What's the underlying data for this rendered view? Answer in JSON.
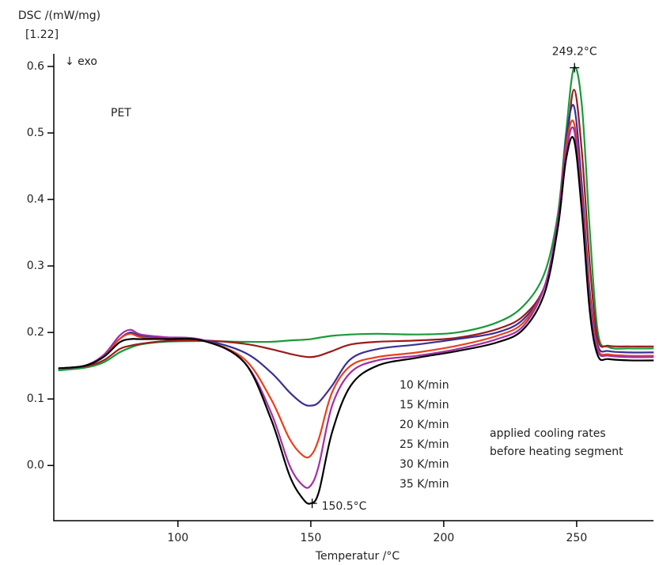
{
  "chart_data": {
    "type": "line",
    "y_label": "DSC /(mW/mg)",
    "y_label_sub": "[1.22]",
    "x_label": "Temperatur /°C",
    "exo_label": "↓ exo",
    "sample_label": "PET",
    "notes": [
      "applied cooling rates",
      "before heating segment"
    ],
    "xlim": [
      53.3,
      278.9
    ],
    "ylim": [
      -0.083,
      0.619
    ],
    "xticks": [
      100,
      150,
      200,
      250
    ],
    "yticks": [
      {
        "value": 0,
        "label": "0.0"
      },
      0.1,
      0.2,
      0.3,
      0.4,
      0.5,
      0.6
    ],
    "x": [
      55,
      65,
      72,
      78,
      82,
      86,
      95,
      110,
      125,
      135,
      142,
      147,
      150,
      153,
      158,
      165,
      175,
      190,
      205,
      220,
      230,
      238,
      243,
      246,
      249,
      252,
      255,
      258,
      262,
      270,
      279
    ],
    "series": [
      {
        "name": "10 K/min",
        "color": "#1a9a3a",
        "values": [
          0.143,
          0.147,
          0.155,
          0.17,
          0.177,
          0.182,
          0.186,
          0.187,
          0.186,
          0.186,
          0.188,
          0.189,
          0.19,
          0.192,
          0.195,
          0.197,
          0.198,
          0.197,
          0.2,
          0.215,
          0.24,
          0.29,
          0.38,
          0.5,
          0.598,
          0.54,
          0.35,
          0.2,
          0.178,
          0.176,
          0.176
        ]
      },
      {
        "name": "15 K/min",
        "color": "#9b1b1b",
        "values": [
          0.146,
          0.149,
          0.158,
          0.175,
          0.18,
          0.183,
          0.187,
          0.188,
          0.183,
          0.175,
          0.168,
          0.164,
          0.163,
          0.165,
          0.172,
          0.182,
          0.186,
          0.188,
          0.192,
          0.205,
          0.225,
          0.27,
          0.36,
          0.47,
          0.565,
          0.47,
          0.3,
          0.19,
          0.18,
          0.179,
          0.179
        ]
      },
      {
        "name": "20 K/min",
        "color": "#3b2f95",
        "values": [
          0.146,
          0.15,
          0.165,
          0.19,
          0.2,
          0.195,
          0.192,
          0.188,
          0.17,
          0.14,
          0.11,
          0.093,
          0.09,
          0.095,
          0.12,
          0.16,
          0.175,
          0.182,
          0.19,
          0.2,
          0.22,
          0.27,
          0.37,
          0.49,
          0.54,
          0.42,
          0.26,
          0.18,
          0.172,
          0.17,
          0.17
        ]
      },
      {
        "name": "25 K/min",
        "color": "#e8401c",
        "values": [
          0.146,
          0.15,
          0.165,
          0.19,
          0.198,
          0.193,
          0.19,
          0.187,
          0.16,
          0.1,
          0.04,
          0.015,
          0.015,
          0.04,
          0.11,
          0.15,
          0.163,
          0.17,
          0.18,
          0.195,
          0.215,
          0.27,
          0.37,
          0.48,
          0.515,
          0.4,
          0.25,
          0.175,
          0.167,
          0.165,
          0.165
        ]
      },
      {
        "name": "30 K/min",
        "color": "#a52ea5",
        "values": [
          0.146,
          0.15,
          0.166,
          0.195,
          0.204,
          0.197,
          0.193,
          0.188,
          0.155,
          0.08,
          0.0,
          -0.03,
          -0.03,
          0.0,
          0.09,
          0.14,
          0.158,
          0.165,
          0.175,
          0.19,
          0.21,
          0.27,
          0.37,
          0.47,
          0.505,
          0.39,
          0.24,
          0.172,
          0.165,
          0.163,
          0.163
        ]
      },
      {
        "name": "35 K/min",
        "color": "#000000",
        "values": [
          0.146,
          0.15,
          0.163,
          0.185,
          0.19,
          0.19,
          0.19,
          0.187,
          0.155,
          0.07,
          -0.015,
          -0.05,
          -0.057,
          -0.04,
          0.05,
          0.12,
          0.15,
          0.162,
          0.172,
          0.185,
          0.205,
          0.26,
          0.36,
          0.46,
          0.49,
          0.38,
          0.23,
          0.165,
          0.16,
          0.158,
          0.158
        ]
      }
    ],
    "annotations": [
      {
        "text": "249.2°C",
        "x": 249.2,
        "y": 0.598,
        "color": "#1a9a3a"
      },
      {
        "text": "150.5°C",
        "x": 150.5,
        "y": -0.057,
        "color": "#222222"
      }
    ]
  }
}
